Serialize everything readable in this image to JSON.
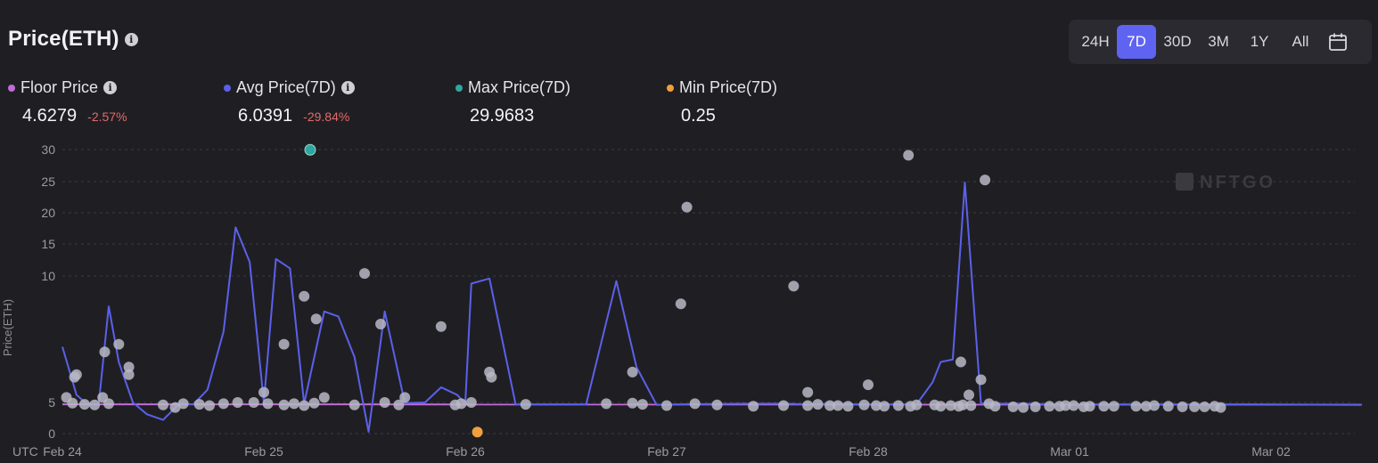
{
  "header": {
    "title": "Price(ETH)"
  },
  "ranges": [
    "24H",
    "7D",
    "30D",
    "3M",
    "1Y",
    "All"
  ],
  "active_range": "7D",
  "legend": {
    "floor": {
      "label": "Floor Price",
      "value": "4.6279",
      "change": "-2.57%",
      "color": "#c46ad8"
    },
    "avg": {
      "label": "Avg Price(7D)",
      "value": "6.0391",
      "change": "-29.84%",
      "color": "#5b60ea"
    },
    "max": {
      "label": "Max Price(7D)",
      "value": "29.9683",
      "color": "#2ea7a0"
    },
    "min": {
      "label": "Min Price(7D)",
      "value": "0.25",
      "color": "#f0a03c"
    }
  },
  "watermark": "NFTGO",
  "chart_data": {
    "type": "line",
    "title": "Price(ETH)",
    "ylabel": "Price(ETH)",
    "xlabel": "UTC",
    "x_ticks": [
      "Feb 24",
      "Feb 25",
      "Feb 26",
      "Feb 27",
      "Feb 28",
      "Mar 01",
      "Mar 02"
    ],
    "y_ticks": [
      0,
      5,
      10,
      15,
      20,
      25,
      30
    ],
    "xlim": [
      0,
      6.45
    ],
    "ylim": [
      0,
      30
    ],
    "floor_series": {
      "name": "Floor Price",
      "x": [
        0,
        6.45
      ],
      "y": [
        4.7,
        4.65
      ]
    },
    "avg_series": {
      "name": "Avg Price(7D)",
      "x": [
        0,
        0.07,
        0.12,
        0.18,
        0.23,
        0.28,
        0.35,
        0.42,
        0.5,
        0.58,
        0.65,
        0.72,
        0.8,
        0.86,
        0.93,
        1.0,
        1.06,
        1.13,
        1.2,
        1.3,
        1.37,
        1.45,
        1.52,
        1.6,
        1.7,
        1.8,
        1.88,
        1.96,
        2.0,
        2.03,
        2.12,
        2.25,
        2.4,
        2.6,
        2.75,
        2.85,
        2.95,
        3.07,
        3.4,
        3.6,
        3.7,
        3.75,
        3.8,
        3.85,
        3.93,
        4.0,
        4.08,
        4.16,
        4.24,
        4.32,
        4.36,
        4.42,
        4.48,
        4.56,
        4.6,
        4.63,
        4.67,
        4.72,
        4.8,
        4.9,
        5.0,
        5.2,
        5.8,
        6.45
      ],
      "y": [
        7.2,
        5.3,
        4.8,
        4.6,
        8.8,
        6.6,
        5.0,
        3.1,
        2.2,
        4.8,
        4.7,
        5.5,
        7.8,
        17.7,
        12.2,
        5.0,
        12.7,
        11.2,
        4.8,
        8.6,
        8.4,
        6.8,
        0.3,
        8.6,
        4.9,
        5.0,
        5.6,
        5.3,
        4.8,
        9.7,
        9.9,
        4.7,
        4.7,
        4.7,
        9.8,
        6.4,
        4.6,
        4.7,
        4.8,
        4.8,
        4.7,
        4.7,
        4.8,
        4.8,
        4.7,
        4.7,
        4.7,
        4.7,
        4.7,
        5.8,
        6.6,
        6.7,
        24.8,
        4.8,
        5.0,
        4.8,
        4.8,
        4.8,
        4.8,
        4.7,
        4.7,
        4.7,
        4.7,
        4.6
      ]
    },
    "sales": {
      "x": [
        0.02,
        0.05,
        0.07,
        0.11,
        0.16,
        0.2,
        0.23,
        0.28,
        0.33,
        0.5,
        0.56,
        0.6,
        0.68,
        0.73,
        0.8,
        0.87,
        0.95,
        1.02,
        1.1,
        1.15,
        1.2,
        1.25,
        1.3,
        1.45,
        1.6,
        1.67,
        1.95,
        1.98,
        2.03,
        2.3,
        2.7,
        2.83,
        2.88,
        3.0,
        3.14,
        3.25,
        3.43,
        3.58,
        3.7,
        3.75,
        3.81,
        3.85,
        3.9,
        3.98,
        4.04,
        4.08,
        4.15,
        4.21,
        4.24,
        4.33,
        4.36,
        4.41,
        4.45,
        4.47,
        4.51,
        4.6,
        4.63,
        4.72,
        4.77,
        4.83,
        4.9,
        4.95,
        4.98,
        5.02,
        5.07,
        5.1,
        5.17,
        5.22,
        5.33,
        5.38,
        5.42,
        5.49,
        5.56,
        5.62,
        5.67,
        5.72,
        5.75
      ],
      "y": [
        5.2,
        4.9,
        6.1,
        4.7,
        4.6,
        5.2,
        4.8,
        7.3,
        6.1,
        4.6,
        4.2,
        4.8,
        4.7,
        4.5,
        4.8,
        5.0,
        5.0,
        4.8,
        4.6,
        4.8,
        4.5,
        4.9,
        5.2,
        4.6,
        5.0,
        4.6,
        4.6,
        4.8,
        5.0,
        4.7,
        4.8,
        4.9,
        4.7,
        4.5,
        4.8,
        4.6,
        4.4,
        4.5,
        4.5,
        4.7,
        4.5,
        4.5,
        4.4,
        4.6,
        4.5,
        4.4,
        4.5,
        4.4,
        4.6,
        4.6,
        4.4,
        4.5,
        4.4,
        4.6,
        4.5,
        4.8,
        4.4,
        4.3,
        4.2,
        4.3,
        4.4,
        4.4,
        4.5,
        4.5,
        4.3,
        4.4,
        4.4,
        4.4,
        4.4,
        4.4,
        4.5,
        4.4,
        4.3,
        4.3,
        4.3,
        4.4,
        4.2
      ]
    },
    "sale_points_high": {
      "x": [
        0.06,
        0.21,
        0.33,
        1.0,
        1.1,
        1.2,
        1.26,
        1.5,
        1.58,
        1.7,
        1.88,
        2.12,
        2.13,
        2.83,
        3.07,
        3.1,
        3.63,
        3.7,
        4.0,
        4.2,
        4.46,
        4.5,
        4.56,
        4.58
      ],
      "y": [
        6.0,
        7.0,
        6.4,
        5.4,
        7.3,
        9.2,
        8.3,
        10.4,
        8.1,
        5.2,
        8.0,
        6.2,
        6.0,
        6.2,
        8.9,
        20.9,
        9.6,
        5.4,
        5.7,
        29.1,
        6.6,
        5.3,
        5.9,
        25.2
      ]
    },
    "max_point": {
      "x": 1.23,
      "y": 29.9683
    },
    "min_point": {
      "x": 2.06,
      "y": 0.25
    }
  }
}
